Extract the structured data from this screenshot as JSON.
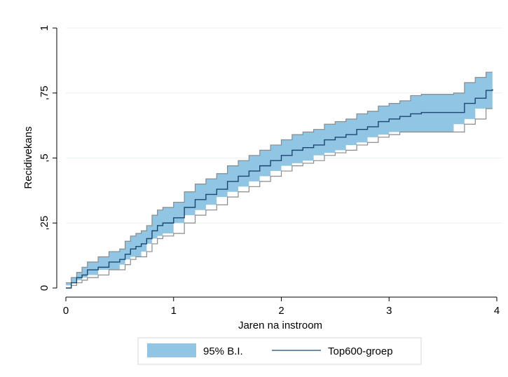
{
  "chart_data": {
    "type": "line",
    "title": "",
    "xlabel": "Jaren na instroom",
    "ylabel": "Recidivekans",
    "xlim": [
      0,
      4
    ],
    "ylim": [
      0,
      1
    ],
    "x_ticks": [
      {
        "value": 0,
        "label": "0"
      },
      {
        "value": 1,
        "label": "1"
      },
      {
        "value": 2,
        "label": "2"
      },
      {
        "value": 3,
        "label": "3"
      },
      {
        "value": 4,
        "label": "4"
      }
    ],
    "y_ticks": [
      {
        "value": 0,
        "label": "0"
      },
      {
        "value": 0.25,
        "label": ",25"
      },
      {
        "value": 0.5,
        "label": ",5"
      },
      {
        "value": 0.75,
        "label": ",75"
      },
      {
        "value": 1,
        "label": "1"
      }
    ],
    "grid": true,
    "legend_position": "bottom",
    "series": [
      {
        "name": "Top600-groep",
        "style": "step-line",
        "color": "#1a476f",
        "x": [
          0,
          0.05,
          0.1,
          0.15,
          0.2,
          0.3,
          0.4,
          0.5,
          0.55,
          0.6,
          0.65,
          0.7,
          0.75,
          0.8,
          0.85,
          0.9,
          1.0,
          1.1,
          1.2,
          1.3,
          1.4,
          1.5,
          1.6,
          1.7,
          1.8,
          1.9,
          2.0,
          2.1,
          2.2,
          2.3,
          2.4,
          2.5,
          2.6,
          2.7,
          2.8,
          2.9,
          3.0,
          3.1,
          3.2,
          3.3,
          3.4,
          3.5,
          3.6,
          3.7,
          3.8,
          3.9,
          3.96
        ],
        "values": [
          0,
          0.02,
          0.04,
          0.05,
          0.07,
          0.08,
          0.1,
          0.11,
          0.13,
          0.15,
          0.16,
          0.17,
          0.19,
          0.22,
          0.24,
          0.25,
          0.27,
          0.31,
          0.34,
          0.36,
          0.38,
          0.41,
          0.43,
          0.45,
          0.47,
          0.49,
          0.51,
          0.53,
          0.54,
          0.55,
          0.57,
          0.58,
          0.59,
          0.61,
          0.62,
          0.64,
          0.65,
          0.66,
          0.67,
          0.675,
          0.675,
          0.675,
          0.675,
          0.71,
          0.73,
          0.76,
          0.765
        ]
      },
      {
        "name": "95% B.I.",
        "style": "band",
        "color": "#90c5e4",
        "edge_color": "#8a8a8a",
        "x": [
          0,
          0.05,
          0.1,
          0.15,
          0.2,
          0.3,
          0.4,
          0.5,
          0.55,
          0.6,
          0.65,
          0.7,
          0.75,
          0.8,
          0.85,
          0.9,
          1.0,
          1.1,
          1.2,
          1.3,
          1.4,
          1.5,
          1.6,
          1.7,
          1.8,
          1.9,
          2.0,
          2.1,
          2.2,
          2.3,
          2.4,
          2.5,
          2.6,
          2.7,
          2.8,
          2.9,
          3.0,
          3.1,
          3.2,
          3.3,
          3.4,
          3.5,
          3.6,
          3.7,
          3.8,
          3.9,
          3.96
        ],
        "lower": [
          0,
          0.01,
          0.02,
          0.03,
          0.04,
          0.05,
          0.07,
          0.07,
          0.09,
          0.11,
          0.12,
          0.12,
          0.14,
          0.17,
          0.19,
          0.2,
          0.21,
          0.25,
          0.28,
          0.3,
          0.32,
          0.35,
          0.37,
          0.39,
          0.41,
          0.43,
          0.45,
          0.47,
          0.48,
          0.49,
          0.51,
          0.52,
          0.53,
          0.55,
          0.56,
          0.58,
          0.59,
          0.6,
          0.6,
          0.6,
          0.6,
          0.6,
          0.6,
          0.63,
          0.65,
          0.69,
          0.69
        ],
        "upper": [
          0.02,
          0.04,
          0.06,
          0.08,
          0.1,
          0.12,
          0.14,
          0.15,
          0.18,
          0.2,
          0.21,
          0.22,
          0.24,
          0.28,
          0.3,
          0.31,
          0.33,
          0.37,
          0.4,
          0.42,
          0.44,
          0.47,
          0.49,
          0.51,
          0.53,
          0.55,
          0.57,
          0.59,
          0.6,
          0.61,
          0.63,
          0.64,
          0.65,
          0.67,
          0.68,
          0.7,
          0.71,
          0.72,
          0.74,
          0.745,
          0.745,
          0.745,
          0.75,
          0.79,
          0.81,
          0.83,
          0.83
        ]
      }
    ],
    "legend": [
      {
        "label": "95% B.I.",
        "kind": "band",
        "color": "#90c5e4"
      },
      {
        "label": "Top600-groep",
        "kind": "line",
        "color": "#1a476f"
      }
    ]
  }
}
